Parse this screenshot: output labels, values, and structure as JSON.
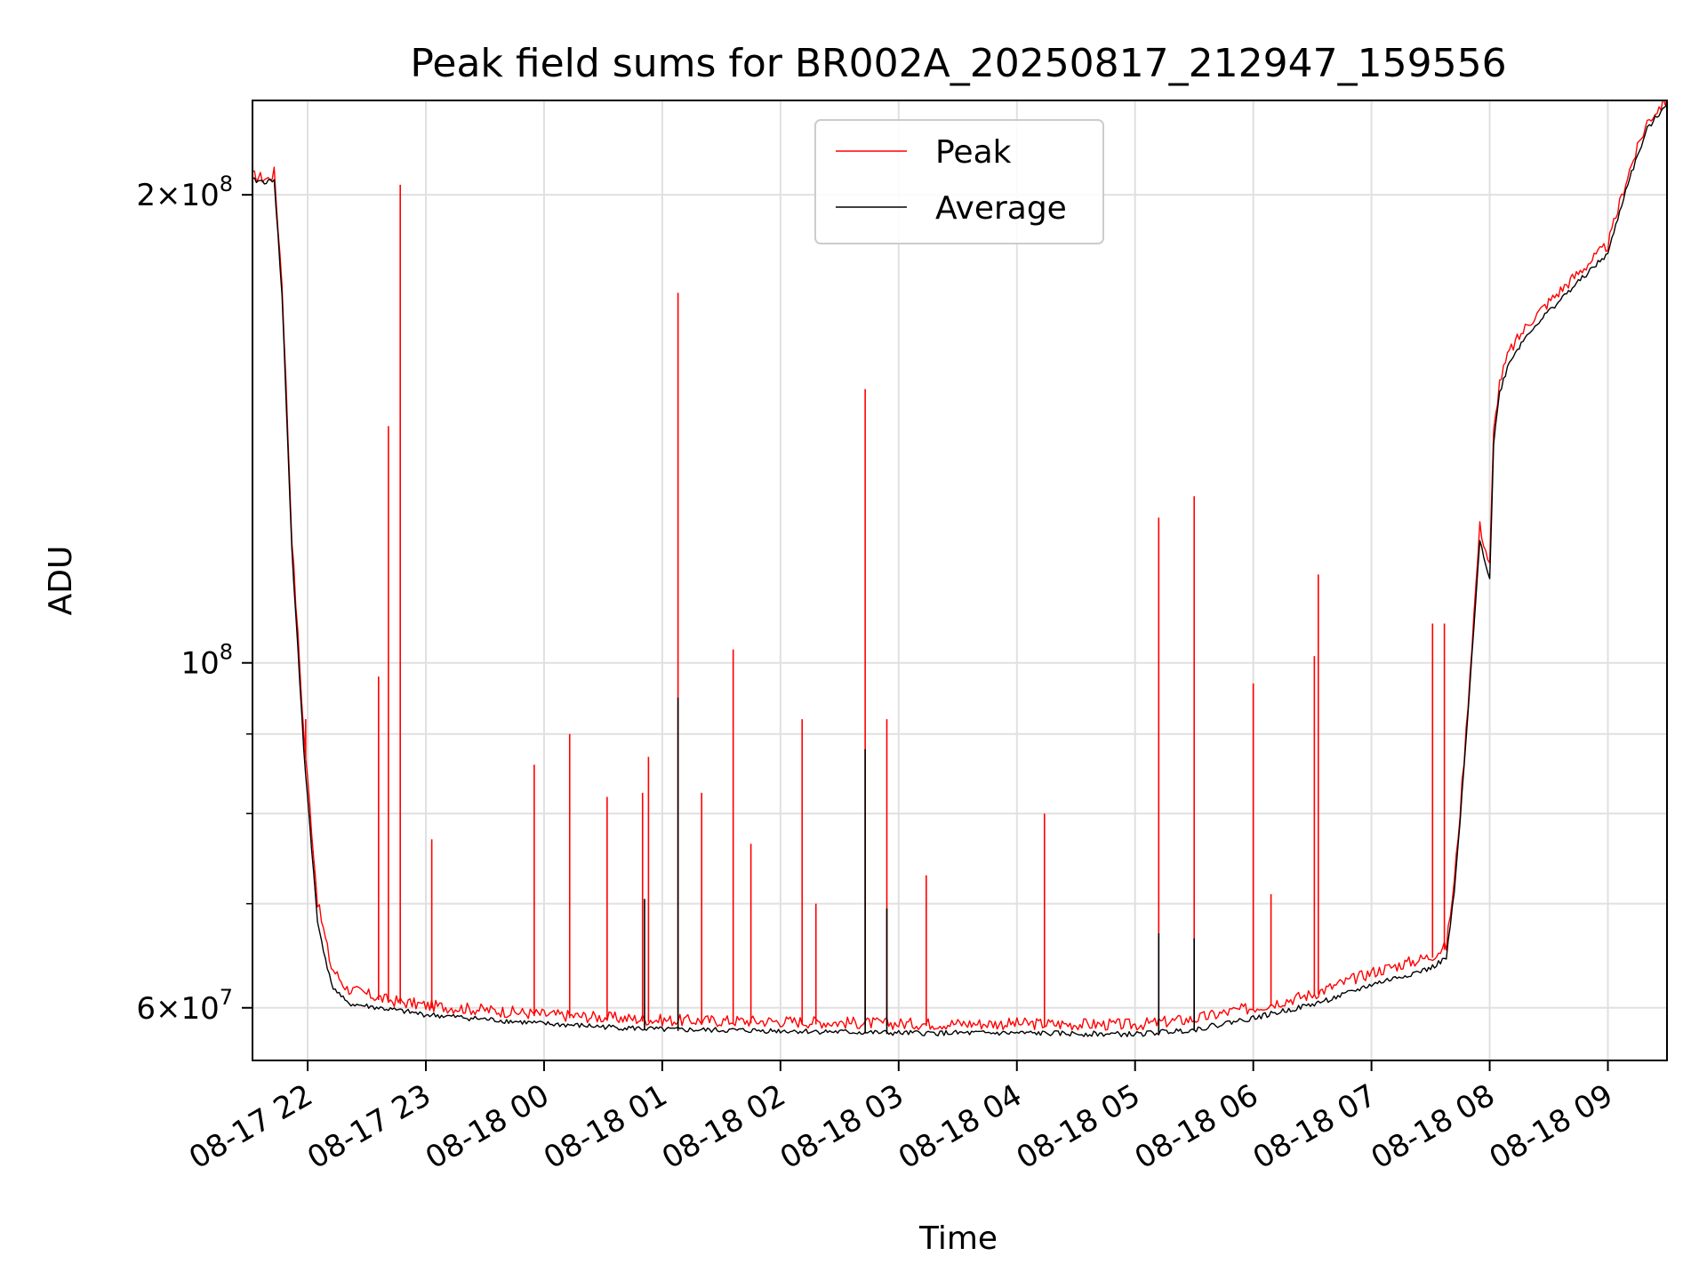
{
  "chart_data": {
    "type": "line",
    "title": "Peak field sums for BR002A_20250817_212947_159556",
    "xlabel": "Time",
    "ylabel": "ADU",
    "yscale": "log",
    "ylim": [
      55500000,
      230000000
    ],
    "xlim": [
      "2025-08-17 21:32",
      "2025-08-18 09:30"
    ],
    "grid": true,
    "legend_position": "upper center",
    "x_ticks": [
      "08-17 22",
      "08-17 23",
      "08-18 00",
      "08-18 01",
      "08-18 02",
      "08-18 03",
      "08-18 04",
      "08-18 05",
      "08-18 06",
      "08-18 07",
      "08-18 08",
      "08-18 09"
    ],
    "y_major_ticks": [
      {
        "value": 200000000,
        "mantissa": "2",
        "exponent": "8"
      },
      {
        "value": 100000000,
        "mantissa": "",
        "exponent": "8"
      },
      {
        "value": 60000000,
        "mantissa": "6",
        "exponent": "7"
      }
    ],
    "y_minor_gridlines": [
      70000000,
      80000000,
      90000000
    ],
    "series": [
      {
        "name": "Peak",
        "color": "#ff0000",
        "baseline": [
          [
            "2025-08-17 21:32",
            205000000
          ],
          [
            "2025-08-17 21:40",
            204000000
          ],
          [
            "2025-08-17 21:43",
            206000000
          ],
          [
            "2025-08-17 21:47",
            175000000
          ],
          [
            "2025-08-17 21:52",
            120000000
          ],
          [
            "2025-08-17 21:58",
            90000000
          ],
          [
            "2025-08-17 22:05",
            70000000
          ],
          [
            "2025-08-17 22:12",
            63500000
          ],
          [
            "2025-08-17 22:20",
            61500000
          ],
          [
            "2025-08-17 22:40",
            60500000
          ],
          [
            "2025-08-17 23:00",
            60000000
          ],
          [
            "2025-08-18 00:00",
            59200000
          ],
          [
            "2025-08-18 01:00",
            58700000
          ],
          [
            "2025-08-18 02:00",
            58600000
          ],
          [
            "2025-08-18 03:00",
            58400000
          ],
          [
            "2025-08-18 04:00",
            58400000
          ],
          [
            "2025-08-18 05:00",
            58300000
          ],
          [
            "2025-08-18 05:30",
            58800000
          ],
          [
            "2025-08-18 05:50",
            59500000
          ],
          [
            "2025-08-18 06:00",
            59800000
          ],
          [
            "2025-08-18 06:30",
            61000000
          ],
          [
            "2025-08-18 06:45",
            62000000
          ],
          [
            "2025-08-18 07:00",
            63000000
          ],
          [
            "2025-08-18 07:30",
            64500000
          ],
          [
            "2025-08-18 07:38",
            65500000
          ],
          [
            "2025-08-18 07:42",
            72000000
          ],
          [
            "2025-08-18 07:45",
            80000000
          ],
          [
            "2025-08-18 07:48",
            90000000
          ],
          [
            "2025-08-18 07:52",
            107000000
          ],
          [
            "2025-08-18 07:55",
            122000000
          ],
          [
            "2025-08-18 08:00",
            115000000
          ],
          [
            "2025-08-18 08:02",
            140000000
          ],
          [
            "2025-08-18 08:05",
            151000000
          ],
          [
            "2025-08-18 08:10",
            158000000
          ],
          [
            "2025-08-18 08:20",
            165000000
          ],
          [
            "2025-08-18 08:30",
            170000000
          ],
          [
            "2025-08-18 08:40",
            175000000
          ],
          [
            "2025-08-18 08:50",
            180000000
          ],
          [
            "2025-08-18 09:00",
            185000000
          ],
          [
            "2025-08-18 09:10",
            205000000
          ],
          [
            "2025-08-18 09:20",
            222000000
          ],
          [
            "2025-08-18 09:30",
            230000000
          ]
        ],
        "spikes": [
          [
            "2025-08-17 21:59",
            92000000
          ],
          [
            "2025-08-17 22:36",
            98000000
          ],
          [
            "2025-08-17 22:41",
            142000000
          ],
          [
            "2025-08-17 22:47",
            203000000
          ],
          [
            "2025-08-17 23:03",
            77000000
          ],
          [
            "2025-08-17 23:55",
            86000000
          ],
          [
            "2025-08-18 00:13",
            90000000
          ],
          [
            "2025-08-18 00:32",
            82000000
          ],
          [
            "2025-08-18 00:50",
            82500000
          ],
          [
            "2025-08-18 00:53",
            87000000
          ],
          [
            "2025-08-18 01:08",
            173000000
          ],
          [
            "2025-08-18 01:20",
            82500000
          ],
          [
            "2025-08-18 01:36",
            102000000
          ],
          [
            "2025-08-18 01:45",
            76500000
          ],
          [
            "2025-08-18 02:11",
            92000000
          ],
          [
            "2025-08-18 02:18",
            70000000
          ],
          [
            "2025-08-18 02:43",
            150000000
          ],
          [
            "2025-08-18 02:54",
            92000000
          ],
          [
            "2025-08-18 03:14",
            73000000
          ],
          [
            "2025-08-18 04:14",
            80000000
          ],
          [
            "2025-08-18 05:12",
            124000000
          ],
          [
            "2025-08-18 05:30",
            128000000
          ],
          [
            "2025-08-18 06:00",
            97000000
          ],
          [
            "2025-08-18 06:09",
            71000000
          ],
          [
            "2025-08-18 06:31",
            101000000
          ],
          [
            "2025-08-18 06:33",
            114000000
          ],
          [
            "2025-08-18 07:31",
            106000000
          ],
          [
            "2025-08-18 07:37",
            106000000
          ]
        ]
      },
      {
        "name": "Average",
        "color": "#000000",
        "baseline": [
          [
            "2025-08-17 21:32",
            204000000
          ],
          [
            "2025-08-17 21:40",
            203500000
          ],
          [
            "2025-08-17 21:43",
            204500000
          ],
          [
            "2025-08-17 21:47",
            172000000
          ],
          [
            "2025-08-17 21:52",
            118000000
          ],
          [
            "2025-08-17 21:58",
            88000000
          ],
          [
            "2025-08-17 22:05",
            68000000
          ],
          [
            "2025-08-17 22:12",
            62000000
          ],
          [
            "2025-08-17 22:20",
            60300000
          ],
          [
            "2025-08-17 22:40",
            59800000
          ],
          [
            "2025-08-17 23:00",
            59300000
          ],
          [
            "2025-08-18 00:00",
            58500000
          ],
          [
            "2025-08-18 01:00",
            58000000
          ],
          [
            "2025-08-18 02:00",
            57900000
          ],
          [
            "2025-08-18 03:00",
            57700000
          ],
          [
            "2025-08-18 04:00",
            57700000
          ],
          [
            "2025-08-18 05:00",
            57600000
          ],
          [
            "2025-08-18 05:30",
            58000000
          ],
          [
            "2025-08-18 05:50",
            58700000
          ],
          [
            "2025-08-18 06:00",
            59000000
          ],
          [
            "2025-08-18 06:30",
            60200000
          ],
          [
            "2025-08-18 06:45",
            61000000
          ],
          [
            "2025-08-18 07:00",
            62000000
          ],
          [
            "2025-08-18 07:30",
            63500000
          ],
          [
            "2025-08-18 07:38",
            64500000
          ],
          [
            "2025-08-18 07:42",
            71000000
          ],
          [
            "2025-08-18 07:45",
            79000000
          ],
          [
            "2025-08-18 07:48",
            89000000
          ],
          [
            "2025-08-18 07:52",
            105000000
          ],
          [
            "2025-08-18 07:55",
            120000000
          ],
          [
            "2025-08-18 08:00",
            113000000
          ],
          [
            "2025-08-18 08:02",
            138000000
          ],
          [
            "2025-08-18 08:05",
            149000000
          ],
          [
            "2025-08-18 08:10",
            156000000
          ],
          [
            "2025-08-18 08:20",
            163000000
          ],
          [
            "2025-08-18 08:30",
            168000000
          ],
          [
            "2025-08-18 08:40",
            173000000
          ],
          [
            "2025-08-18 08:50",
            178000000
          ],
          [
            "2025-08-18 09:00",
            183000000
          ],
          [
            "2025-08-18 09:10",
            203000000
          ],
          [
            "2025-08-18 09:20",
            220000000
          ],
          [
            "2025-08-18 09:30",
            229000000
          ]
        ],
        "spikes": [
          [
            "2025-08-18 00:51",
            70500000
          ],
          [
            "2025-08-18 01:08",
            95000000
          ],
          [
            "2025-08-18 02:43",
            88000000
          ],
          [
            "2025-08-18 02:54",
            69500000
          ],
          [
            "2025-08-18 05:12",
            67000000
          ],
          [
            "2025-08-18 05:30",
            66500000
          ]
        ]
      }
    ]
  }
}
